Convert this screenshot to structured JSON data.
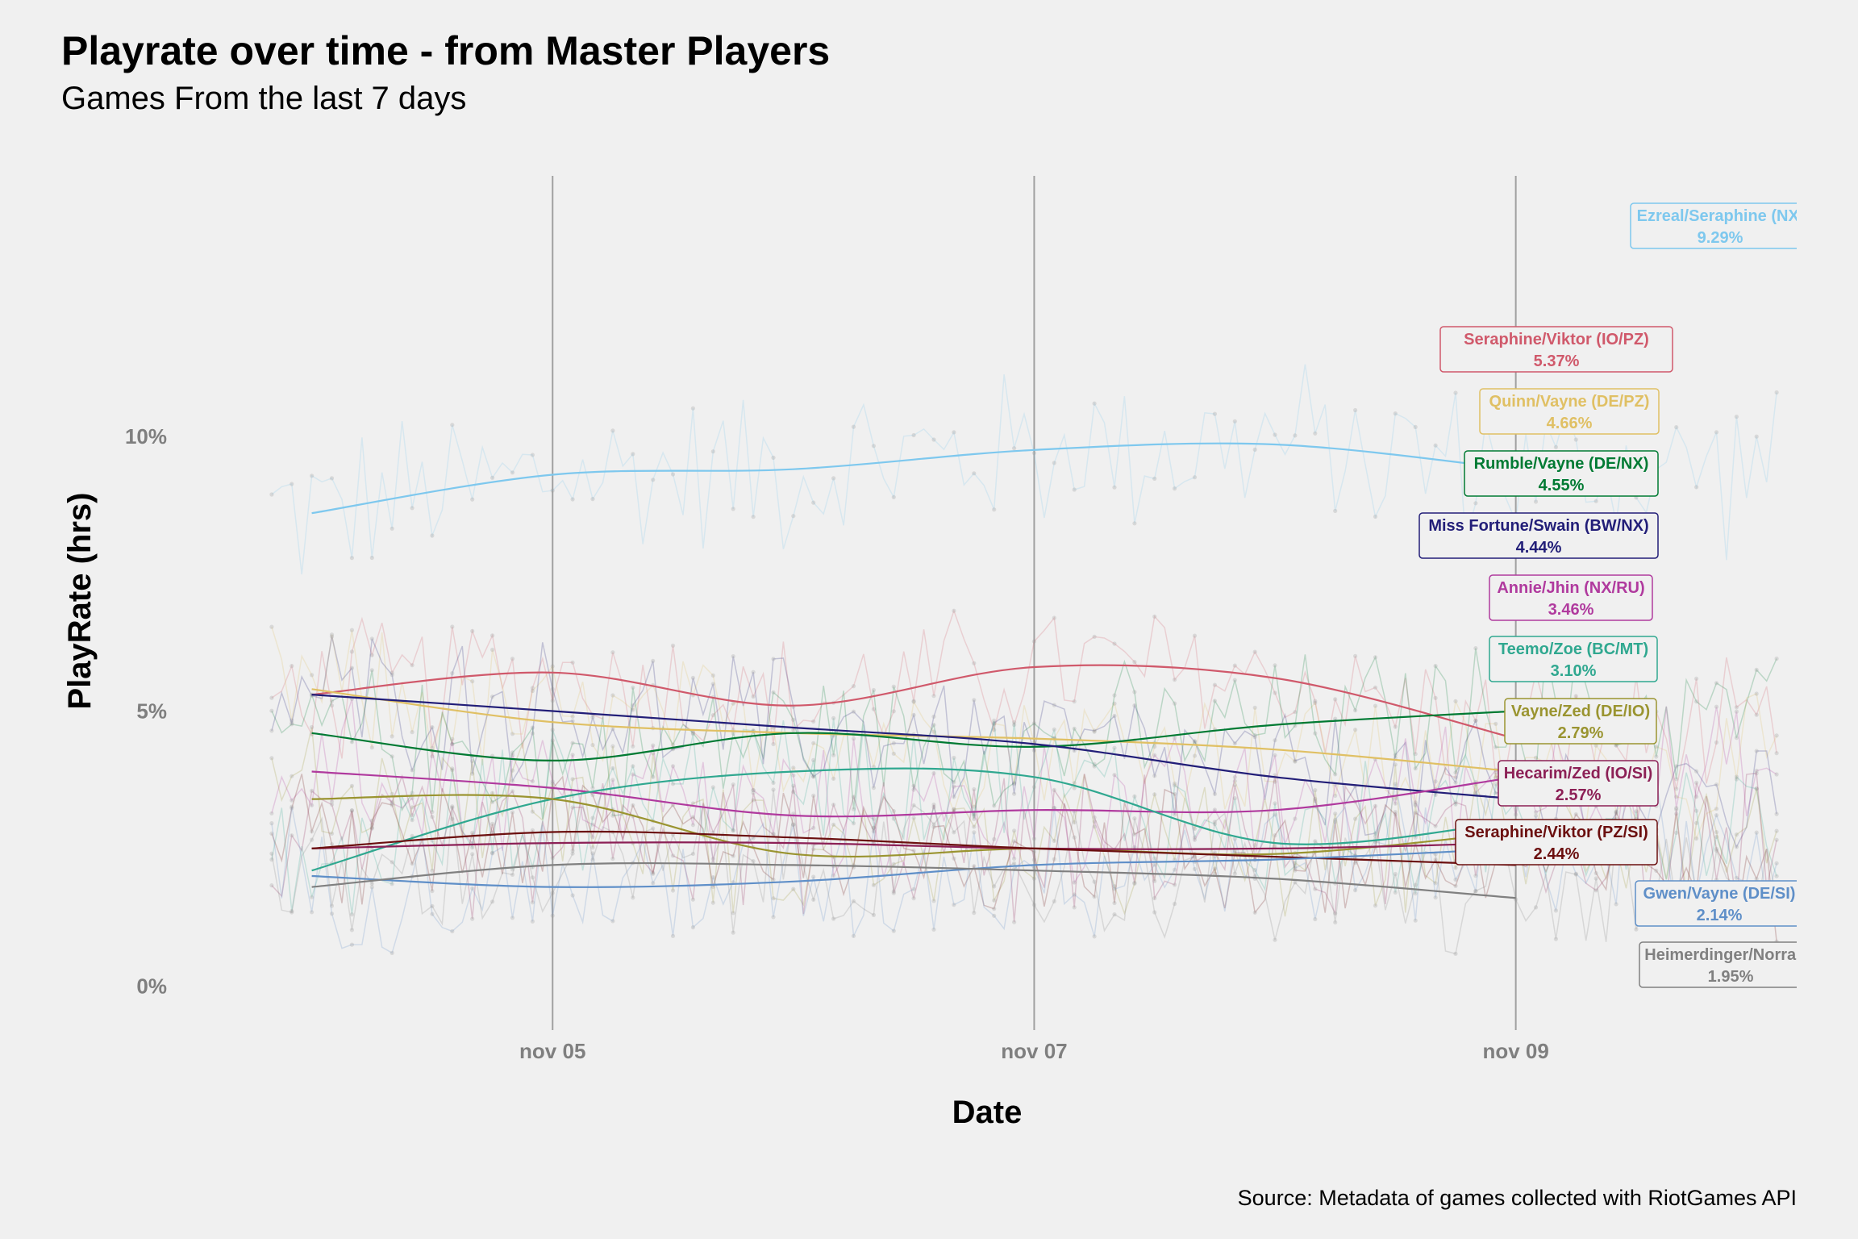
{
  "chart_data": {
    "type": "line",
    "title": "Playrate over time - from Master Players",
    "subtitle": "Games From the last 7 days",
    "caption": "Source: Metadata of games collected with RiotGames API",
    "xlabel": "Date",
    "ylabel": "PlayRate (hrs)",
    "x_range": [
      "2020-11-03 18:00",
      "2020-11-10 04:00"
    ],
    "x_ticks": [
      {
        "date": "2020-11-05",
        "label": "nov 05"
      },
      {
        "date": "2020-11-07",
        "label": "nov 07"
      },
      {
        "date": "2020-11-09",
        "label": "nov 09"
      }
    ],
    "y_range": [
      -0.7,
      15
    ],
    "y_ticks": [
      {
        "value": 0,
        "label": "0%"
      },
      {
        "value": 5,
        "label": "5%"
      },
      {
        "value": 10,
        "label": "10%"
      }
    ],
    "grid": "vertical major only",
    "legend": "direct labels at right",
    "series": [
      {
        "name": "Ezreal/Seraphine (NX/",
        "value_label": "9.29%",
        "color": "#7ec8ee",
        "trend_x": [
          "2020-11-04 00:00",
          "2020-11-05 00:00",
          "2020-11-06 00:00",
          "2020-11-07 00:00",
          "2020-11-08 00:00",
          "2020-11-09 00:00"
        ],
        "trend_y": [
          8.6,
          9.3,
          9.4,
          9.75,
          9.85,
          9.4
        ]
      },
      {
        "name": "Seraphine/Viktor (IO/PZ)",
        "value_label": "5.37%",
        "color": "#d0596b",
        "trend_x": [
          "2020-11-04 00:00",
          "2020-11-05 00:00",
          "2020-11-06 00:00",
          "2020-11-07 00:00",
          "2020-11-08 00:00",
          "2020-11-09 00:00"
        ],
        "trend_y": [
          5.3,
          5.7,
          5.1,
          5.8,
          5.6,
          4.5
        ]
      },
      {
        "name": "Quinn/Vayne (DE/PZ)",
        "value_label": "4.66%",
        "color": "#e0c064",
        "trend_x": [
          "2020-11-04 00:00",
          "2020-11-05 00:00",
          "2020-11-06 00:00",
          "2020-11-07 00:00",
          "2020-11-08 00:00",
          "2020-11-09 00:00"
        ],
        "trend_y": [
          5.4,
          4.8,
          4.6,
          4.5,
          4.3,
          3.9
        ]
      },
      {
        "name": "Rumble/Vayne (DE/NX)",
        "value_label": "4.55%",
        "color": "#007a33",
        "trend_x": [
          "2020-11-04 00:00",
          "2020-11-05 00:00",
          "2020-11-06 00:00",
          "2020-11-07 00:00",
          "2020-11-08 00:00",
          "2020-11-09 00:00"
        ],
        "trend_y": [
          4.6,
          4.1,
          4.6,
          4.35,
          4.75,
          5.0
        ]
      },
      {
        "name": "Miss Fortune/Swain (BW/NX)",
        "value_label": "4.44%",
        "color": "#221e78",
        "trend_x": [
          "2020-11-04 00:00",
          "2020-11-05 00:00",
          "2020-11-06 00:00",
          "2020-11-07 00:00",
          "2020-11-08 00:00",
          "2020-11-09 00:00"
        ],
        "trend_y": [
          5.3,
          5.0,
          4.7,
          4.4,
          3.8,
          3.4
        ]
      },
      {
        "name": "Annie/Jhin (NX/RU)",
        "value_label": "3.46%",
        "color": "#b03a9e",
        "trend_x": [
          "2020-11-04 00:00",
          "2020-11-05 00:00",
          "2020-11-06 00:00",
          "2020-11-07 00:00",
          "2020-11-08 00:00",
          "2020-11-09 00:00"
        ],
        "trend_y": [
          3.9,
          3.6,
          3.1,
          3.2,
          3.2,
          3.8
        ]
      },
      {
        "name": "Teemo/Zoe (BC/MT)",
        "value_label": "3.10%",
        "color": "#30a890",
        "trend_x": [
          "2020-11-04 00:00",
          "2020-11-05 00:00",
          "2020-11-06 00:00",
          "2020-11-07 00:00",
          "2020-11-08 00:00",
          "2020-11-09 00:00"
        ],
        "trend_y": [
          2.1,
          3.4,
          3.9,
          3.8,
          2.6,
          3.0
        ]
      },
      {
        "name": "Vayne/Zed (DE/IO)",
        "value_label": "2.79%",
        "color": "#9a9430",
        "trend_x": [
          "2020-11-04 00:00",
          "2020-11-05 00:00",
          "2020-11-06 00:00",
          "2020-11-07 00:00",
          "2020-11-08 00:00",
          "2020-11-09 00:00"
        ],
        "trend_y": [
          3.4,
          3.4,
          2.4,
          2.5,
          2.4,
          2.8
        ]
      },
      {
        "name": "Hecarim/Zed (IO/SI)",
        "value_label": "2.57%",
        "color": "#8c2056",
        "trend_x": [
          "2020-11-04 00:00",
          "2020-11-05 00:00",
          "2020-11-06 00:00",
          "2020-11-07 00:00",
          "2020-11-08 00:00",
          "2020-11-09 00:00"
        ],
        "trend_y": [
          2.5,
          2.6,
          2.6,
          2.5,
          2.5,
          2.6
        ]
      },
      {
        "name": "Seraphine/Viktor (PZ/SI)",
        "value_label": "2.44%",
        "color": "#6b0f0f",
        "trend_x": [
          "2020-11-04 00:00",
          "2020-11-05 00:00",
          "2020-11-06 00:00",
          "2020-11-07 00:00",
          "2020-11-08 00:00",
          "2020-11-09 00:00"
        ],
        "trend_y": [
          2.5,
          2.8,
          2.7,
          2.5,
          2.35,
          2.2
        ]
      },
      {
        "name": "Gwen/Vayne (DE/SI)",
        "value_label": "2.14%",
        "color": "#5f8fc8",
        "trend_x": [
          "2020-11-04 00:00",
          "2020-11-05 00:00",
          "2020-11-06 00:00",
          "2020-11-07 00:00",
          "2020-11-08 00:00",
          "2020-11-09 00:00"
        ],
        "trend_y": [
          2.0,
          1.8,
          1.9,
          2.2,
          2.3,
          2.5
        ]
      },
      {
        "name": "Heimerdinger/Norra (E",
        "value_label": "1.95%",
        "color": "#808080",
        "trend_x": [
          "2020-11-04 00:00",
          "2020-11-05 00:00",
          "2020-11-06 00:00",
          "2020-11-07 00:00",
          "2020-11-08 00:00",
          "2020-11-09 00:00"
        ],
        "trend_y": [
          1.8,
          2.2,
          2.2,
          2.1,
          1.95,
          1.6
        ]
      }
    ]
  }
}
